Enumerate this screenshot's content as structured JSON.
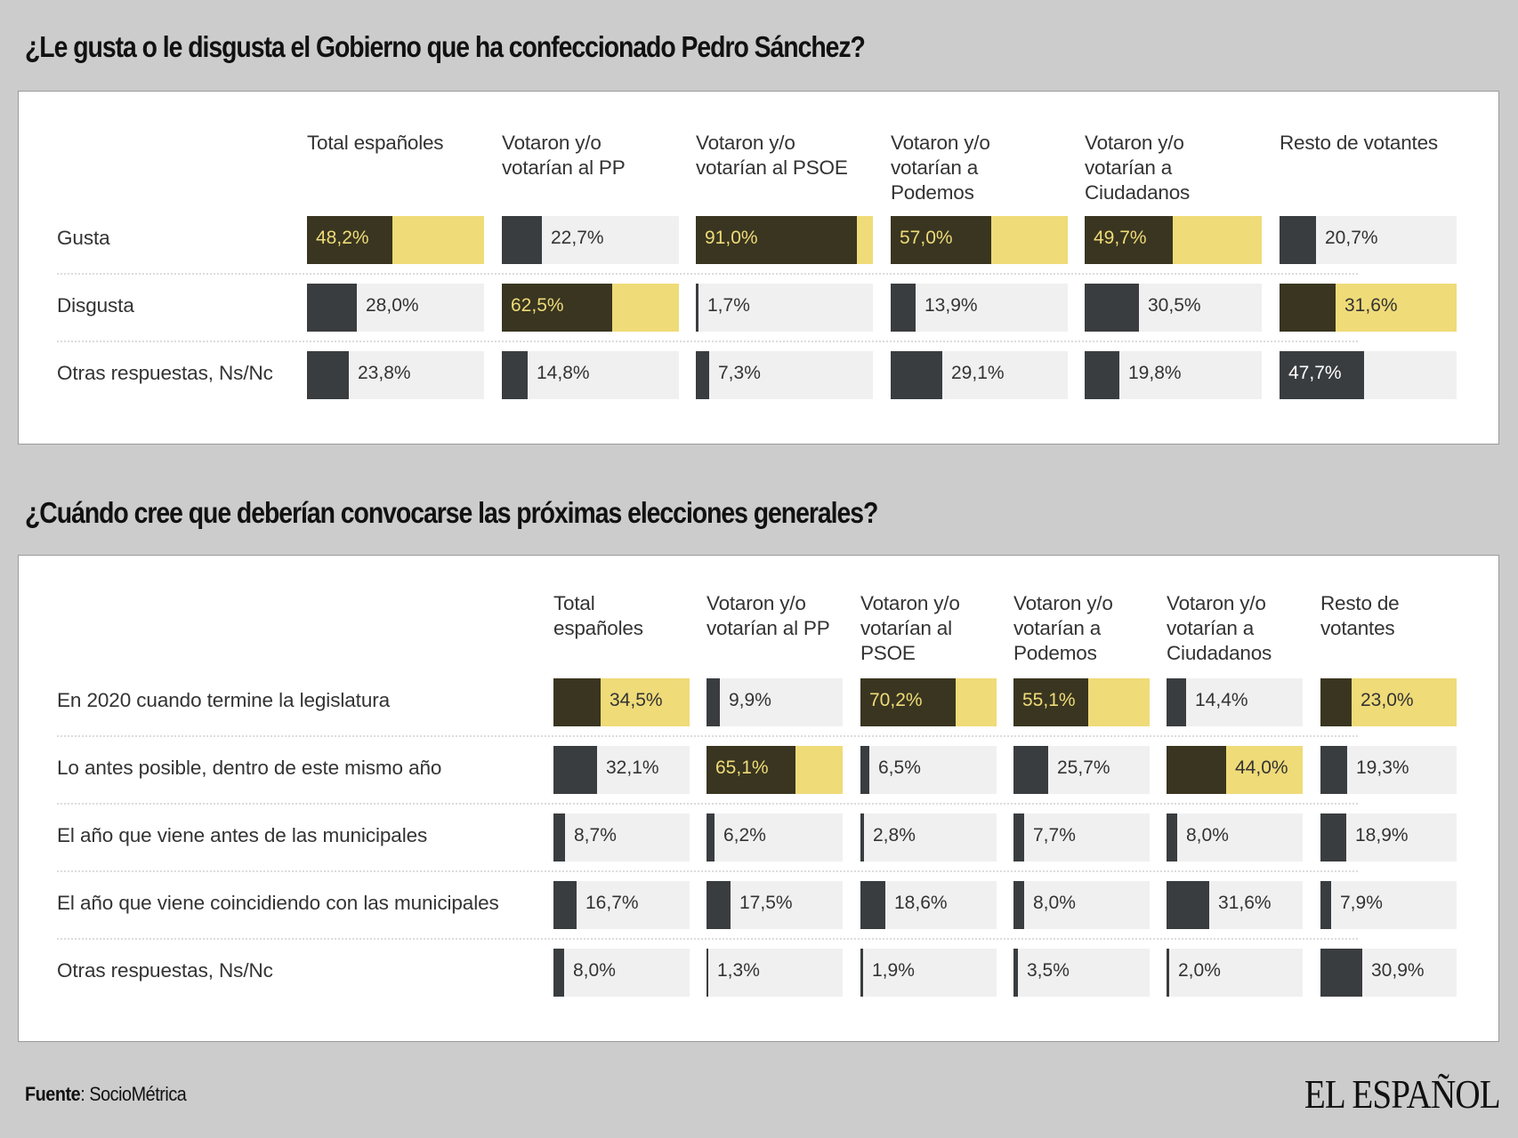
{
  "chart_data": [
    {
      "type": "table",
      "title": "¿Le gusta o le disgusta el Gobierno que ha confeccionado Pedro Sánchez?",
      "columns": [
        "Total españoles",
        "Votaron y/o votarían al PP",
        "Votaron y/o votarían al PSOE",
        "Votaron y/o votarían a Podemos",
        "Votaron y/o votarían a Ciudadanos",
        "Resto de votantes"
      ],
      "column_lines": [
        [
          "Total españoles"
        ],
        [
          "Votaron y/o",
          "votarían al PP"
        ],
        [
          "Votaron y/o",
          "votarían al PSOE"
        ],
        [
          "Votaron y/o",
          "votarían a",
          "Podemos"
        ],
        [
          "Votaron y/o",
          "votarían a",
          "Ciudadanos"
        ],
        [
          "Resto de votantes"
        ]
      ],
      "rows": [
        {
          "label": "Gusta",
          "values": [
            48.2,
            22.7,
            91.0,
            57.0,
            49.7,
            20.7
          ],
          "display": [
            "48,2%",
            "22,7%",
            "91,0%",
            "57,0%",
            "49,7%",
            "20,7%"
          ],
          "highlight": [
            true,
            false,
            true,
            true,
            true,
            false
          ]
        },
        {
          "label": "Disgusta",
          "values": [
            28.0,
            62.5,
            1.7,
            13.9,
            30.5,
            31.6
          ],
          "display": [
            "28,0%",
            "62,5%",
            "1,7%",
            "13,9%",
            "30,5%",
            "31,6%"
          ],
          "highlight": [
            false,
            true,
            false,
            false,
            false,
            true
          ]
        },
        {
          "label": "Otras respuestas, Ns/Nc",
          "values": [
            23.8,
            14.8,
            7.3,
            29.1,
            19.8,
            47.7
          ],
          "display": [
            "23,8%",
            "14,8%",
            "7,3%",
            "29,1%",
            "19,8%",
            "47,7%"
          ],
          "highlight": [
            false,
            false,
            false,
            false,
            false,
            false
          ]
        }
      ]
    },
    {
      "type": "table",
      "title": "¿Cuándo cree que deberían convocarse las próximas elecciones generales?",
      "columns": [
        "Total españoles",
        "Votaron y/o votarían al PP",
        "Votaron y/o votarían al PSOE",
        "Votaron y/o votarían a Podemos",
        "Votaron y/o votarían a Ciudadanos",
        "Resto de votantes"
      ],
      "column_lines": [
        [
          "Total",
          "españoles"
        ],
        [
          "Votaron y/o",
          "votarían al PP"
        ],
        [
          "Votaron y/o",
          "votarían al",
          "PSOE"
        ],
        [
          "Votaron y/o",
          "votarían a",
          "Podemos"
        ],
        [
          "Votaron y/o",
          "votarían a",
          "Ciudadanos"
        ],
        [
          "Resto de",
          "votantes"
        ]
      ],
      "rows": [
        {
          "label": "En 2020 cuando termine la legislatura",
          "values": [
            34.5,
            9.9,
            70.2,
            55.1,
            14.4,
            23.0
          ],
          "display": [
            "34,5%",
            "9,9%",
            "70,2%",
            "55,1%",
            "14,4%",
            "23,0%"
          ],
          "highlight": [
            true,
            false,
            true,
            true,
            false,
            true
          ]
        },
        {
          "label": "Lo antes posible, dentro de este mismo año",
          "values": [
            32.1,
            65.1,
            6.5,
            25.7,
            44.0,
            19.3
          ],
          "display": [
            "32,1%",
            "65,1%",
            "6,5%",
            "25,7%",
            "44,0%",
            "19,3%"
          ],
          "highlight": [
            false,
            true,
            false,
            false,
            true,
            false
          ]
        },
        {
          "label": "El año que viene antes de las municipales",
          "values": [
            8.7,
            6.2,
            2.8,
            7.7,
            8.0,
            18.9
          ],
          "display": [
            "8,7%",
            "6,2%",
            "2,8%",
            "7,7%",
            "8,0%",
            "18,9%"
          ],
          "highlight": [
            false,
            false,
            false,
            false,
            false,
            false
          ]
        },
        {
          "label": "El año que viene coincidiendo con las municipales",
          "values": [
            16.7,
            17.5,
            18.6,
            8.0,
            31.6,
            7.9
          ],
          "display": [
            "16,7%",
            "17,5%",
            "18,6%",
            "8,0%",
            "31,6%",
            "7,9%"
          ],
          "highlight": [
            false,
            false,
            false,
            false,
            false,
            false
          ]
        },
        {
          "label": "Otras respuestas, Ns/Nc",
          "values": [
            8.0,
            1.3,
            1.9,
            3.5,
            2.0,
            30.9
          ],
          "display": [
            "8,0%",
            "1,3%",
            "1,9%",
            "3,5%",
            "2,0%",
            "30,9%"
          ],
          "highlight": [
            false,
            false,
            false,
            false,
            false,
            false
          ]
        }
      ]
    }
  ],
  "colors": {
    "background": "#cccccc",
    "highlight_fill": "#393520",
    "highlight_rest": "#efdb78",
    "normal_fill": "#3a3d40",
    "normal_rest": "#f0f0f0"
  },
  "footer": {
    "source_label": "Fuente",
    "source_value": ": SocioMétrica",
    "logo": "EL ESPAÑOL"
  }
}
